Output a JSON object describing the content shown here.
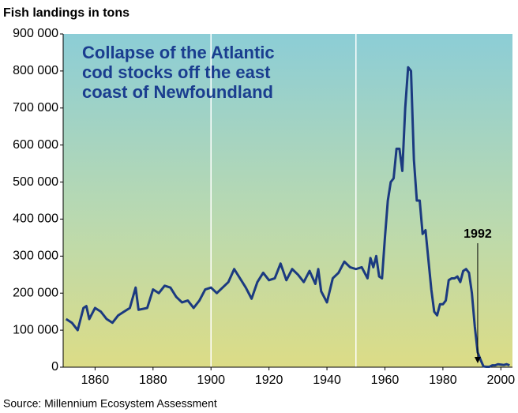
{
  "chart_data": {
    "type": "line",
    "ylabel": "Fish landings in tons",
    "annotation": "Collapse of the Atlantic cod stocks off the east coast of Newfoundland",
    "marker": {
      "label": "1992",
      "x": 1992
    },
    "source": "Source: Millennium Ecosystem Assessment",
    "x": [
      1850,
      1852,
      1854,
      1856,
      1857,
      1858,
      1860,
      1862,
      1864,
      1866,
      1868,
      1870,
      1872,
      1874,
      1875,
      1878,
      1880,
      1882,
      1884,
      1886,
      1888,
      1890,
      1892,
      1894,
      1896,
      1898,
      1900,
      1902,
      1904,
      1906,
      1908,
      1910,
      1912,
      1914,
      1916,
      1918,
      1920,
      1922,
      1924,
      1926,
      1928,
      1930,
      1932,
      1934,
      1936,
      1937,
      1938,
      1940,
      1942,
      1944,
      1946,
      1948,
      1950,
      1952,
      1954,
      1955,
      1956,
      1957,
      1958,
      1959,
      1960,
      1961,
      1962,
      1963,
      1964,
      1965,
      1966,
      1967,
      1968,
      1969,
      1970,
      1971,
      1972,
      1973,
      1974,
      1975,
      1976,
      1977,
      1978,
      1979,
      1980,
      1981,
      1982,
      1983,
      1984,
      1985,
      1986,
      1987,
      1988,
      1989,
      1990,
      1991,
      1992,
      1993,
      1994,
      1995,
      1996,
      1997,
      1998,
      1999,
      2000,
      2001,
      2002,
      2003
    ],
    "series": [
      {
        "name": "Cod landings",
        "color": "#1b3a80",
        "values": [
          130000,
          120000,
          100000,
          160000,
          165000,
          130000,
          160000,
          150000,
          130000,
          120000,
          140000,
          150000,
          160000,
          215000,
          155000,
          160000,
          210000,
          200000,
          220000,
          215000,
          190000,
          175000,
          180000,
          160000,
          180000,
          210000,
          215000,
          200000,
          215000,
          230000,
          265000,
          240000,
          215000,
          185000,
          230000,
          255000,
          235000,
          240000,
          280000,
          235000,
          265000,
          250000,
          230000,
          260000,
          225000,
          265000,
          205000,
          175000,
          240000,
          255000,
          285000,
          270000,
          265000,
          270000,
          240000,
          295000,
          270000,
          300000,
          245000,
          240000,
          350000,
          450000,
          500000,
          510000,
          590000,
          590000,
          530000,
          700000,
          810000,
          800000,
          560000,
          450000,
          450000,
          360000,
          370000,
          290000,
          210000,
          150000,
          140000,
          170000,
          170000,
          180000,
          235000,
          240000,
          240000,
          245000,
          230000,
          260000,
          265000,
          255000,
          200000,
          110000,
          40000,
          20000,
          2000,
          1000,
          1000,
          5000,
          5000,
          8000,
          7000,
          6000,
          8000,
          5000
        ]
      }
    ],
    "xlim": [
      1849,
      2004
    ],
    "xticks": [
      1860,
      1880,
      1900,
      1920,
      1940,
      1960,
      1980,
      2000
    ],
    "x_gridlines": [
      1900,
      1950
    ],
    "ylim": [
      0,
      900000
    ],
    "yticks": [
      {
        "value": 0,
        "label": "0"
      },
      {
        "value": 100000,
        "label": "100 000"
      },
      {
        "value": 200000,
        "label": "200 000"
      },
      {
        "value": 300000,
        "label": "300 000"
      },
      {
        "value": 400000,
        "label": "400 000"
      },
      {
        "value": 500000,
        "label": "500 000"
      },
      {
        "value": 600000,
        "label": "600 000"
      },
      {
        "value": 700000,
        "label": "700 000"
      },
      {
        "value": 800000,
        "label": "800 000"
      },
      {
        "value": 900000,
        "label": "900 000"
      }
    ]
  }
}
